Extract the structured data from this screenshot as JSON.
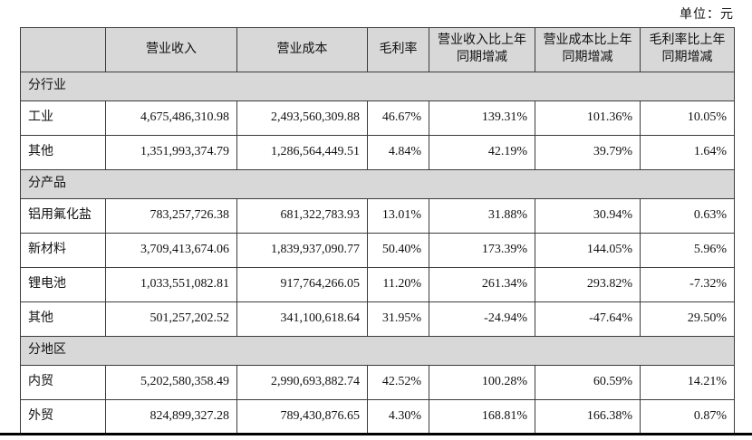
{
  "unit_label": "单位：元",
  "table": {
    "columns": [
      "",
      "营业收入",
      "营业成本",
      "毛利率",
      "营业收入比上年同期增减",
      "营业成本比上年同期增减",
      "毛利率比上年同期增减"
    ],
    "sections": [
      {
        "title": "分行业",
        "rows": [
          {
            "cells": [
              "工业",
              "4,675,486,310.98",
              "2,493,560,309.88",
              "46.67%",
              "139.31%",
              "101.36%",
              "10.05%"
            ]
          },
          {
            "cells": [
              "其他",
              "1,351,993,374.79",
              "1,286,564,449.51",
              "4.84%",
              "42.19%",
              "39.79%",
              "1.64%"
            ]
          }
        ]
      },
      {
        "title": "分产品",
        "rows": [
          {
            "cells": [
              "铝用氟化盐",
              "783,257,726.38",
              "681,322,783.93",
              "13.01%",
              "31.88%",
              "30.94%",
              "0.63%"
            ]
          },
          {
            "cells": [
              "新材料",
              "3,709,413,674.06",
              "1,839,937,090.77",
              "50.40%",
              "173.39%",
              "144.05%",
              "5.96%"
            ]
          },
          {
            "cells": [
              "锂电池",
              "1,033,551,082.81",
              "917,764,266.05",
              "11.20%",
              "261.34%",
              "293.82%",
              "-7.32%"
            ]
          },
          {
            "cells": [
              "其他",
              "501,257,202.52",
              "341,100,618.64",
              "31.95%",
              "-24.94%",
              "-47.64%",
              "29.50%"
            ]
          }
        ]
      },
      {
        "title": "分地区",
        "rows": [
          {
            "cells": [
              "内贸",
              "5,202,580,358.49",
              "2,990,693,882.74",
              "42.52%",
              "100.28%",
              "60.59%",
              "14.21%"
            ]
          },
          {
            "cells": [
              "外贸",
              "824,899,327.28",
              "789,430,876.65",
              "4.30%",
              "168.81%",
              "166.38%",
              "0.87%"
            ]
          }
        ]
      }
    ]
  }
}
